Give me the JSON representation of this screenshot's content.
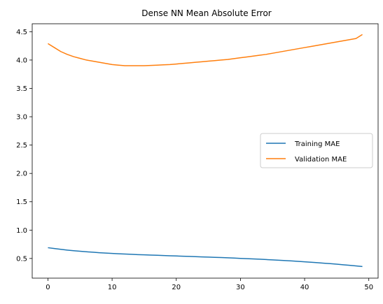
{
  "chart_data": {
    "type": "line",
    "title": "Dense NN Mean Absolute Error",
    "xlabel": "",
    "ylabel": "",
    "xlim": [
      -2.45,
      51.45
    ],
    "ylim": [
      0.153,
      4.64
    ],
    "x_ticks": [
      0,
      10,
      20,
      30,
      40,
      50
    ],
    "y_ticks": [
      0.5,
      1.0,
      1.5,
      2.0,
      2.5,
      3.0,
      3.5,
      4.0,
      4.5
    ],
    "x_tick_labels": [
      "0",
      "10",
      "20",
      "30",
      "40",
      "50"
    ],
    "y_tick_labels": [
      "0.5",
      "1.0",
      "1.5",
      "2.0",
      "2.5",
      "3.0",
      "3.5",
      "4.0",
      "4.5"
    ],
    "grid": false,
    "legend_position": "center-right",
    "x": [
      0,
      1,
      2,
      3,
      4,
      5,
      6,
      7,
      8,
      9,
      10,
      11,
      12,
      13,
      14,
      15,
      16,
      17,
      18,
      19,
      20,
      21,
      22,
      23,
      24,
      25,
      26,
      27,
      28,
      29,
      30,
      31,
      32,
      33,
      34,
      35,
      36,
      37,
      38,
      39,
      40,
      41,
      42,
      43,
      44,
      45,
      46,
      47,
      48,
      49
    ],
    "series": [
      {
        "name": "Training MAE",
        "color": "#1f77b4",
        "values": [
          0.69,
          0.675,
          0.661,
          0.648,
          0.637,
          0.627,
          0.618,
          0.61,
          0.602,
          0.595,
          0.589,
          0.583,
          0.578,
          0.573,
          0.568,
          0.564,
          0.56,
          0.556,
          0.552,
          0.548,
          0.544,
          0.54,
          0.536,
          0.532,
          0.528,
          0.524,
          0.52,
          0.516,
          0.512,
          0.507,
          0.502,
          0.497,
          0.492,
          0.487,
          0.481,
          0.475,
          0.469,
          0.463,
          0.456,
          0.449,
          0.441,
          0.433,
          0.425,
          0.417,
          0.408,
          0.399,
          0.389,
          0.379,
          0.369,
          0.358
        ]
      },
      {
        "name": "Validation MAE",
        "color": "#ff7f0e",
        "values": [
          4.29,
          4.22,
          4.15,
          4.1,
          4.06,
          4.03,
          4.0,
          3.98,
          3.96,
          3.94,
          3.92,
          3.91,
          3.9,
          3.9,
          3.9,
          3.9,
          3.905,
          3.91,
          3.915,
          3.92,
          3.93,
          3.94,
          3.95,
          3.96,
          3.97,
          3.98,
          3.99,
          4.0,
          4.01,
          4.025,
          4.04,
          4.055,
          4.07,
          4.085,
          4.1,
          4.12,
          4.14,
          4.16,
          4.18,
          4.2,
          4.22,
          4.24,
          4.26,
          4.28,
          4.3,
          4.32,
          4.34,
          4.36,
          4.38,
          4.45
        ]
      }
    ]
  }
}
